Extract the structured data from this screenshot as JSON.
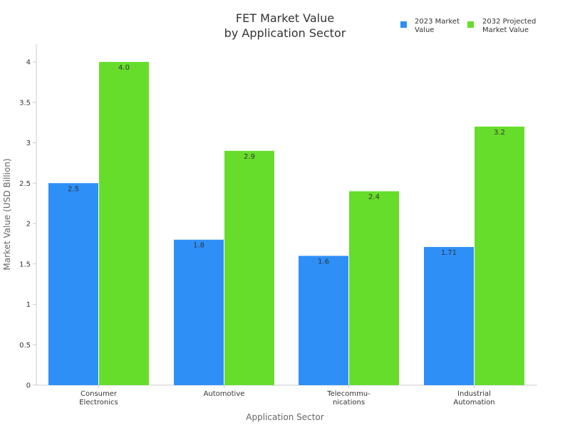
{
  "chart_data": {
    "type": "bar",
    "title_lines": [
      "FET Market Value",
      "by Application Sector"
    ],
    "xlabel": "Application Sector",
    "ylabel": "Market Value (USD Billion)",
    "ylim": [
      0,
      4.2
    ],
    "yticks": [
      0,
      0.5,
      1,
      1.5,
      2,
      2.5,
      3,
      3.5,
      4
    ],
    "ytick_labels": [
      "0",
      "0.5",
      "1",
      "1.5",
      "2",
      "2.5",
      "3",
      "3.5",
      "4"
    ],
    "categories": [
      [
        "Consumer",
        "Electronics"
      ],
      [
        "Automotive"
      ],
      [
        "Telecommu-",
        "nications"
      ],
      [
        "Industrial",
        "Automation"
      ]
    ],
    "series": [
      {
        "name_lines": [
          "2023 Market",
          "Value"
        ],
        "color": "#2E8FF7",
        "values": [
          2.5,
          1.8,
          1.6,
          1.71
        ],
        "labels": [
          "2.5",
          "1.8",
          "1.6",
          "1.71"
        ]
      },
      {
        "name_lines": [
          "2032 Projected",
          "Market Value"
        ],
        "color": "#66DD2B",
        "values": [
          4.0,
          2.9,
          2.4,
          3.2
        ],
        "labels": [
          "4.0",
          "2.9",
          "2.4",
          "3.2"
        ]
      }
    ],
    "grid": false,
    "legend_position": "top-right"
  }
}
